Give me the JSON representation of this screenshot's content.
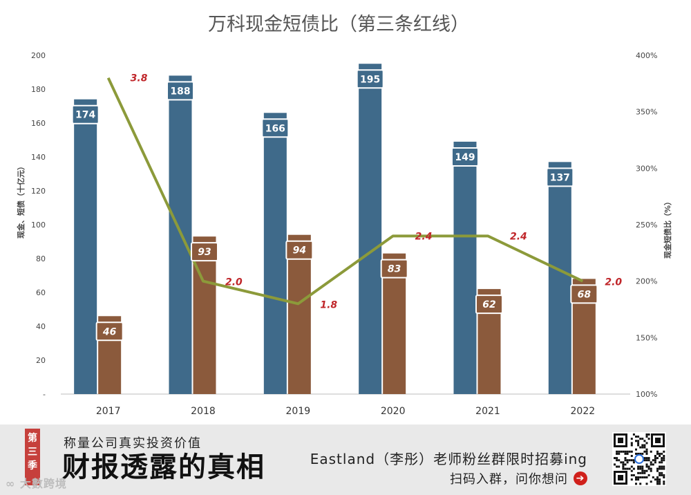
{
  "chart_data": {
    "type": "bar",
    "title": "万科现金短债比（第三条红线）",
    "categories": [
      "2017",
      "2018",
      "2019",
      "2020",
      "2021",
      "2022"
    ],
    "series": [
      {
        "name": "现金",
        "values": [
          174,
          188,
          166,
          195,
          149,
          137
        ],
        "color": "#3f6a8a"
      },
      {
        "name": "短债",
        "values": [
          46,
          93,
          94,
          83,
          62,
          68
        ],
        "color": "#8b5a3c"
      }
    ],
    "line_series": {
      "name": "现金短债比",
      "values": [
        3.8,
        2.0,
        1.8,
        2.4,
        2.4,
        2.0
      ],
      "labels": [
        "3.8",
        "2.0",
        "1.8",
        "2.4",
        "2.4",
        "2.0"
      ],
      "color": "#8c9a3a",
      "label_color": "#c0262a"
    },
    "ylabel_left": "现金、短债（十亿元）",
    "ylabel_right": "现金短债比（%）",
    "yticks_left": [
      "-",
      "20",
      "40",
      "60",
      "80",
      "100",
      "120",
      "140",
      "160",
      "180",
      "200"
    ],
    "ylim_left": [
      0,
      200
    ],
    "yticks_right": [
      "100%",
      "150%",
      "200%",
      "250%",
      "300%",
      "350%",
      "400%"
    ],
    "ylim_right": [
      100,
      400
    ]
  },
  "footer": {
    "season_chars": [
      "第",
      "三",
      "季"
    ],
    "tagline": "称量公司真实投资价值",
    "headline": "财报透露的真相",
    "recruit": "Eastland（李彤）老师粉丝群限时招募ing",
    "scan": "扫码入群，问你想问",
    "arrow": "➔",
    "brand": "∞ 大數跨境"
  }
}
